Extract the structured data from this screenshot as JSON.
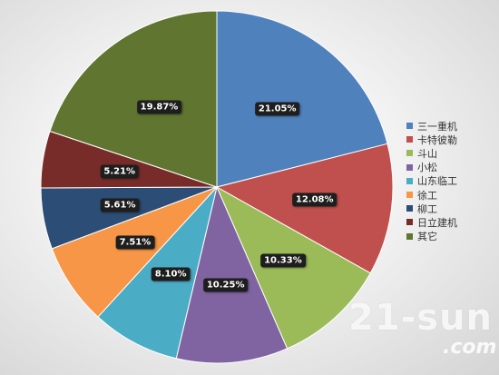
{
  "chart_data": {
    "type": "pie",
    "title": "",
    "legend_position": "right",
    "slices": [
      {
        "name": "三一重机",
        "value": 21.05,
        "label": "21.05%",
        "color": "#4F81BD"
      },
      {
        "name": "卡特彼勒",
        "value": 12.08,
        "label": "12.08%",
        "color": "#C0504D"
      },
      {
        "name": "斗山",
        "value": 10.33,
        "label": "10.33%",
        "color": "#9BBB59"
      },
      {
        "name": "小松",
        "value": 10.25,
        "label": "10.25%",
        "color": "#8064A2"
      },
      {
        "name": "山东临工",
        "value": 8.1,
        "label": "8.10%",
        "color": "#4BACC6"
      },
      {
        "name": "徐工",
        "value": 7.51,
        "label": "7.51%",
        "color": "#F79646"
      },
      {
        "name": "柳工",
        "value": 5.61,
        "label": "5.61%",
        "color": "#2C4D75"
      },
      {
        "name": "日立建机",
        "value": 5.21,
        "label": "5.21%",
        "color": "#772C2A"
      },
      {
        "name": "其它",
        "value": 19.87,
        "label": "19.87%",
        "color": "#5F7530"
      }
    ]
  },
  "watermark": {
    "main": "21-sun",
    "sub": ".com"
  }
}
